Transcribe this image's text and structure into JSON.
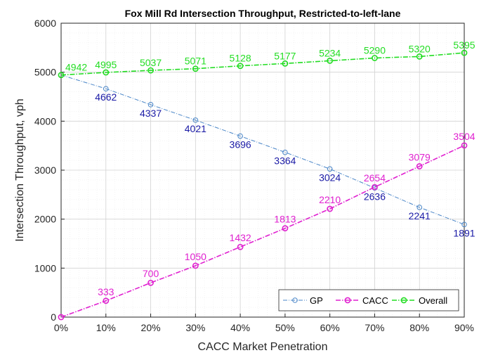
{
  "chart_data": {
    "type": "line",
    "title": "Fox Mill Rd Intersection Throughput, Restricted-to-left-lane",
    "xlabel": "CACC Market Penetration",
    "ylabel": "Intersection Throughput, vph",
    "x": [
      0,
      10,
      20,
      30,
      40,
      50,
      60,
      70,
      80,
      90
    ],
    "x_tick_labels": [
      "0%",
      "10%",
      "20%",
      "30%",
      "40%",
      "50%",
      "60%",
      "70%",
      "80%",
      "90%"
    ],
    "xlim": [
      0,
      90
    ],
    "ylim": [
      0,
      6000
    ],
    "y_ticks": [
      0,
      1000,
      2000,
      3000,
      4000,
      5000,
      6000
    ],
    "grid": true,
    "minor_grid": true,
    "legend_position": "bottom-right",
    "series": [
      {
        "name": "GP",
        "color": "#4a86c8",
        "label_color": "#1a1aa6",
        "line_style": "dash-dot",
        "marker": "circle",
        "values": [
          4942,
          4662,
          4337,
          4021,
          3696,
          3364,
          3024,
          2636,
          2241,
          1891
        ],
        "data_labels": [
          "",
          "4662",
          "4337",
          "4021",
          "3696",
          "3364",
          "3024",
          "2636",
          "2241",
          "1891"
        ]
      },
      {
        "name": "CACC",
        "color": "#e020d0",
        "label_color": "#e020d0",
        "line_style": "dash-dot",
        "marker": "circle",
        "values": [
          0,
          333,
          700,
          1050,
          1432,
          1813,
          2210,
          2654,
          3079,
          3504
        ],
        "data_labels": [
          "",
          "333",
          "700",
          "1050",
          "1432",
          "1813",
          "2210",
          "2654",
          "3079",
          "3504"
        ]
      },
      {
        "name": "Overall",
        "color": "#22dd22",
        "label_color": "#22dd22",
        "line_style": "dash-dot",
        "marker": "circle",
        "values": [
          4942,
          4995,
          5037,
          5071,
          5128,
          5177,
          5234,
          5290,
          5320,
          5395
        ],
        "data_labels": [
          "4942",
          "4995",
          "5037",
          "5071",
          "5128",
          "5177",
          "5234",
          "5290",
          "5320",
          "5395"
        ]
      }
    ]
  }
}
